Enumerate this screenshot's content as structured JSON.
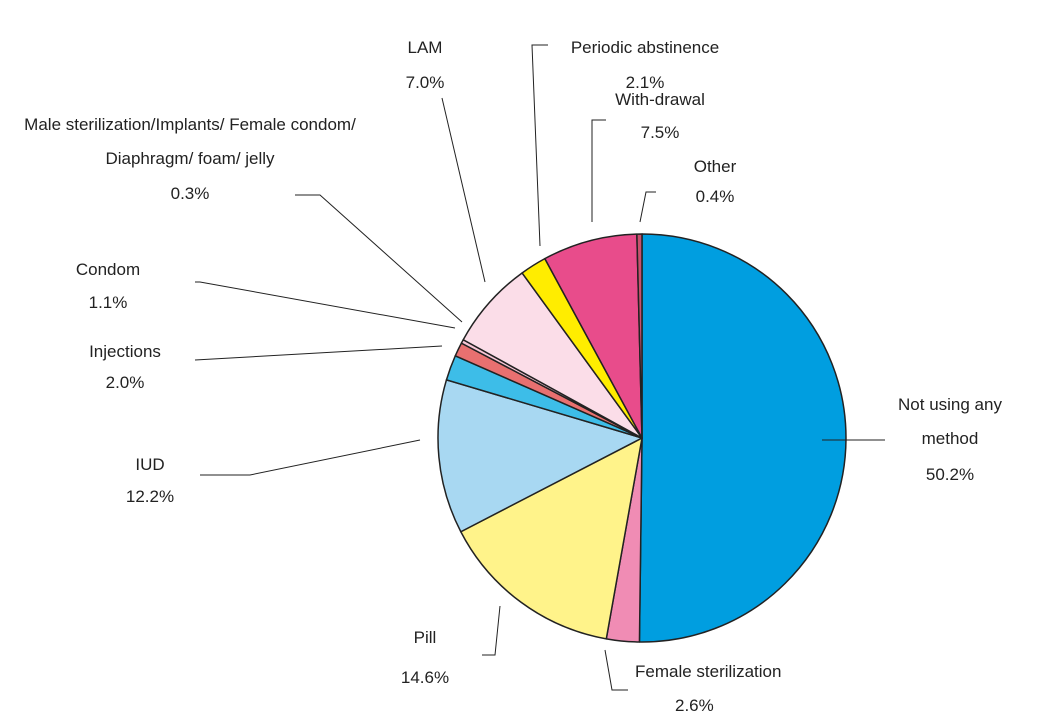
{
  "chart_data": {
    "type": "pie",
    "categories": [
      "Not using any method",
      "Female sterilization",
      "Pill",
      "IUD",
      "Injections",
      "Condom",
      "Male sterilization/Implants/ Female condom/ Diaphragm/ foam/ jelly",
      "LAM",
      "Periodic abstinence",
      "With-drawal",
      "Other"
    ],
    "values": [
      50.2,
      2.6,
      14.6,
      12.2,
      2.0,
      1.1,
      0.3,
      7.0,
      2.1,
      7.5,
      0.4
    ],
    "value_labels": [
      "50.2%",
      "2.6%",
      "14.6%",
      "12.2%",
      "2.0%",
      "1.1%",
      "0.3%",
      "7.0%",
      "2.1%",
      "7.5%",
      "0.4%"
    ],
    "colors": [
      "#009ee0",
      "#f08cb4",
      "#fff38a",
      "#a8d8f2",
      "#3dbde8",
      "#e87070",
      "#f7c6d6",
      "#fbdde8",
      "#ffed00",
      "#e84c8b",
      "#c8506e"
    ]
  }
}
